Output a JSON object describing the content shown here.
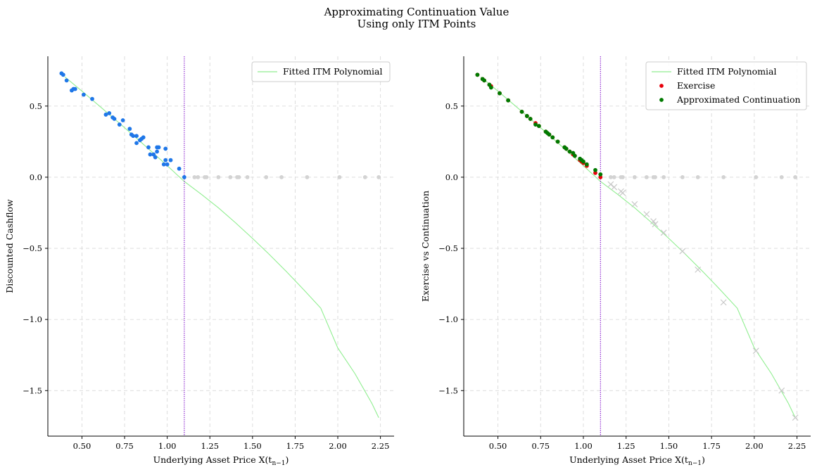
{
  "figure": {
    "title_line1": "Approximating Continuation Value",
    "title_line2": "Using only ITM Points"
  },
  "chart_data": [
    {
      "type": "scatter",
      "title": "",
      "xlabel": "Underlying Asset Price X(t",
      "xlabel_sub": "n−1",
      "xlabel_close": ")",
      "ylabel": "Discounted Cashflow",
      "xlim": [
        0.3,
        2.33
      ],
      "ylim": [
        -1.82,
        0.85
      ],
      "xticks": [
        0.5,
        0.75,
        1.0,
        1.25,
        1.5,
        1.75,
        2.0,
        2.25
      ],
      "xtick_labels": [
        "0.50",
        "0.75",
        "1.00",
        "1.25",
        "1.50",
        "1.75",
        "2.00",
        "2.25"
      ],
      "yticks": [
        0.5,
        0.0,
        -0.5,
        -1.0,
        -1.5
      ],
      "ytick_labels": [
        "0.5",
        "0.0",
        "−0.5",
        "−1.0",
        "−1.5"
      ],
      "grid": true,
      "strike_line_x": 1.1,
      "legend": {
        "position": "top-right",
        "entries": [
          "Fitted ITM Polynomial"
        ]
      },
      "fit_curve": {
        "name": "Fitted ITM Polynomial",
        "color": "#90ee90",
        "x": [
          0.4,
          0.5,
          0.6,
          0.7,
          0.8,
          0.9,
          1.0,
          1.1,
          1.2,
          1.3,
          1.4,
          1.5,
          1.6,
          1.7,
          1.8,
          1.9,
          2.0,
          2.1,
          2.2,
          2.24
        ],
        "y": [
          0.705,
          0.605,
          0.503,
          0.4,
          0.295,
          0.189,
          0.081,
          -0.03,
          -0.12,
          -0.215,
          -0.32,
          -0.43,
          -0.545,
          -0.665,
          -0.79,
          -0.92,
          -1.2,
          -1.38,
          -1.59,
          -1.69
        ]
      },
      "series": [
        {
          "name": "ITM points",
          "color": "#1f77e8",
          "x": [
            0.38,
            0.39,
            0.41,
            0.44,
            0.45,
            0.46,
            0.51,
            0.56,
            0.64,
            0.66,
            0.68,
            0.69,
            0.72,
            0.74,
            0.78,
            0.79,
            0.8,
            0.82,
            0.82,
            0.84,
            0.85,
            0.86,
            0.89,
            0.9,
            0.92,
            0.93,
            0.94,
            0.94,
            0.95,
            0.98,
            0.99,
            0.99,
            1.0,
            1.02,
            1.07,
            1.1
          ],
          "y": [
            0.73,
            0.72,
            0.68,
            0.61,
            0.62,
            0.62,
            0.58,
            0.55,
            0.44,
            0.45,
            0.42,
            0.41,
            0.37,
            0.4,
            0.34,
            0.3,
            0.29,
            0.24,
            0.29,
            0.26,
            0.27,
            0.28,
            0.21,
            0.16,
            0.16,
            0.14,
            0.21,
            0.18,
            0.21,
            0.09,
            0.12,
            0.2,
            0.09,
            0.12,
            0.06,
            0.0
          ]
        },
        {
          "name": "OTM points",
          "color": "#d3d3d3",
          "x": [
            1.16,
            1.18,
            1.22,
            1.23,
            1.3,
            1.37,
            1.41,
            1.42,
            1.47,
            1.58,
            1.67,
            1.82,
            2.01,
            2.16,
            2.24
          ],
          "y": [
            0,
            0,
            0,
            0,
            0,
            0,
            0,
            0,
            0,
            0,
            0,
            0,
            0,
            0,
            0
          ]
        }
      ]
    },
    {
      "type": "scatter",
      "title": "",
      "xlabel": "Underlying Asset Price X(t",
      "xlabel_sub": "n−1",
      "xlabel_close": ")",
      "ylabel": "Exercise vs Continuation",
      "xlim": [
        0.3,
        2.33
      ],
      "ylim": [
        -1.82,
        0.85
      ],
      "xticks": [
        0.5,
        0.75,
        1.0,
        1.25,
        1.5,
        1.75,
        2.0,
        2.25
      ],
      "xtick_labels": [
        "0.50",
        "0.75",
        "1.00",
        "1.25",
        "1.50",
        "1.75",
        "2.00",
        "2.25"
      ],
      "yticks": [
        0.5,
        0.0,
        -0.5,
        -1.0,
        -1.5
      ],
      "ytick_labels": [
        "0.5",
        "0.0",
        "−0.5",
        "−1.0",
        "−1.5"
      ],
      "grid": true,
      "strike_line_x": 1.1,
      "legend": {
        "position": "top-right",
        "entries": [
          "Fitted ITM Polynomial",
          "Exercise",
          "Approximated Continuation"
        ]
      },
      "fit_curve": {
        "name": "Fitted ITM Polynomial",
        "color": "#90ee90",
        "x": [
          0.4,
          0.5,
          0.6,
          0.7,
          0.8,
          0.9,
          1.0,
          1.1,
          1.2,
          1.3,
          1.4,
          1.5,
          1.6,
          1.7,
          1.8,
          1.9,
          2.0,
          2.1,
          2.2,
          2.24
        ],
        "y": [
          0.705,
          0.605,
          0.503,
          0.4,
          0.295,
          0.189,
          0.081,
          -0.03,
          -0.12,
          -0.215,
          -0.32,
          -0.43,
          -0.545,
          -0.665,
          -0.79,
          -0.92,
          -1.2,
          -1.38,
          -1.59,
          -1.69
        ]
      },
      "series": [
        {
          "name": "Exercise",
          "color": "#e8000b",
          "x": [
            0.38,
            0.41,
            0.42,
            0.45,
            0.46,
            0.51,
            0.56,
            0.64,
            0.67,
            0.69,
            0.72,
            0.74,
            0.78,
            0.8,
            0.82,
            0.85,
            0.89,
            0.9,
            0.92,
            0.94,
            0.95,
            0.98,
            0.99,
            1.0,
            1.02,
            1.07,
            1.1
          ],
          "y": [
            0.72,
            0.69,
            0.68,
            0.65,
            0.64,
            0.59,
            0.54,
            0.46,
            0.43,
            0.41,
            0.38,
            0.36,
            0.32,
            0.3,
            0.28,
            0.25,
            0.21,
            0.2,
            0.18,
            0.16,
            0.15,
            0.12,
            0.11,
            0.1,
            0.08,
            0.03,
            0.0
          ]
        },
        {
          "name": "Approximated Continuation",
          "color": "#007a00",
          "x": [
            0.38,
            0.41,
            0.42,
            0.45,
            0.46,
            0.51,
            0.56,
            0.64,
            0.67,
            0.69,
            0.72,
            0.74,
            0.78,
            0.79,
            0.8,
            0.82,
            0.85,
            0.89,
            0.9,
            0.92,
            0.94,
            0.95,
            0.98,
            0.99,
            1.0,
            1.02,
            1.07,
            1.1
          ],
          "y": [
            0.72,
            0.69,
            0.68,
            0.65,
            0.63,
            0.59,
            0.54,
            0.46,
            0.43,
            0.41,
            0.37,
            0.36,
            0.32,
            0.31,
            0.3,
            0.28,
            0.25,
            0.21,
            0.2,
            0.18,
            0.17,
            0.15,
            0.13,
            0.12,
            0.11,
            0.09,
            0.05,
            0.02
          ]
        },
        {
          "name": "OTM zero",
          "color": "#d3d3d3",
          "marker": "circle",
          "x": [
            1.16,
            1.18,
            1.22,
            1.23,
            1.3,
            1.37,
            1.41,
            1.42,
            1.47,
            1.58,
            1.67,
            1.82,
            2.01,
            2.16,
            2.24
          ],
          "y": [
            0,
            0,
            0,
            0,
            0,
            0,
            0,
            0,
            0,
            0,
            0,
            0,
            0,
            0,
            0
          ]
        },
        {
          "name": "OTM continuation",
          "color": "#c8c8c8",
          "marker": "x",
          "x": [
            1.16,
            1.18,
            1.22,
            1.23,
            1.3,
            1.37,
            1.41,
            1.42,
            1.47,
            1.58,
            1.67,
            1.82,
            2.01,
            2.16,
            2.24
          ],
          "y": [
            -0.05,
            -0.07,
            -0.1,
            -0.11,
            -0.19,
            -0.26,
            -0.31,
            -0.33,
            -0.39,
            -0.52,
            -0.65,
            -0.88,
            -1.22,
            -1.5,
            -1.69
          ]
        }
      ]
    }
  ]
}
